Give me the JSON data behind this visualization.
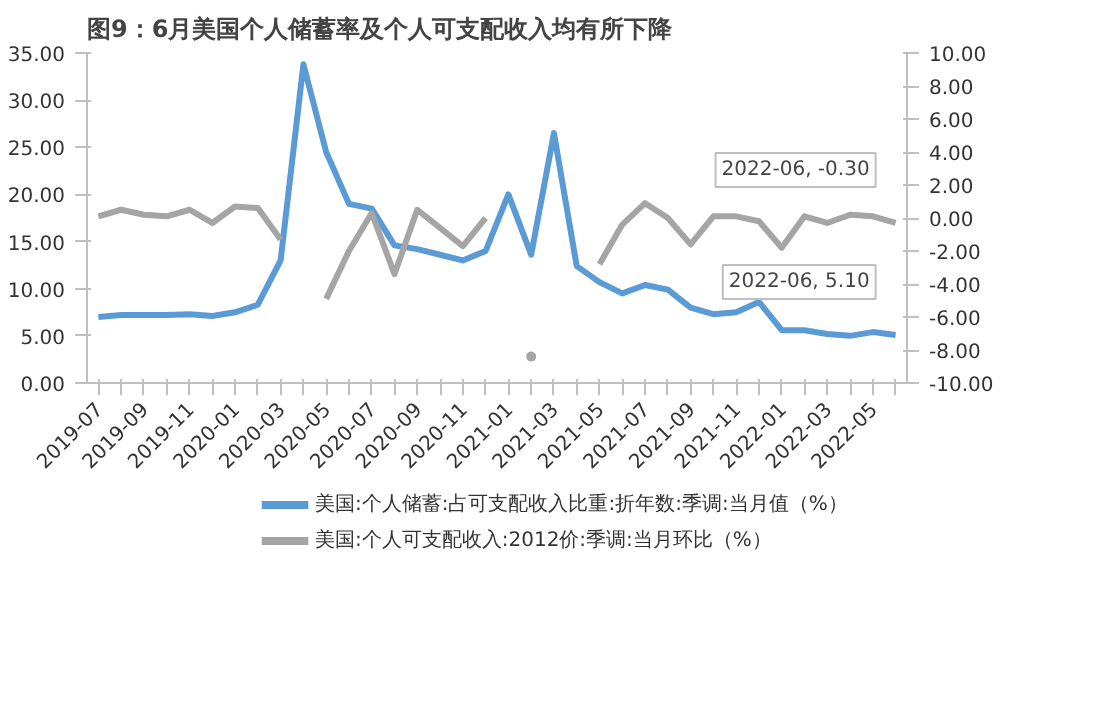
{
  "chart_data": {
    "type": "line",
    "title": "图9：6月美国个人储蓄率及个人可支配收入均有所下降",
    "categories": [
      "2019-07",
      null,
      "2019-09",
      null,
      "2019-11",
      null,
      "2020-01",
      null,
      "2020-03",
      null,
      "2020-05",
      null,
      "2020-07",
      null,
      "2020-09",
      null,
      "2020-11",
      null,
      "2021-01",
      null,
      "2021-03",
      null,
      "2021-05",
      null,
      "2021-07",
      null,
      "2021-09",
      null,
      "2021-11",
      null,
      "2022-01",
      null,
      "2022-03",
      null,
      "2022-05",
      null
    ],
    "series": [
      {
        "name": "美国:个人储蓄:占可支配收入比重:折年数:季调:当月值（%）",
        "color": "#5b9bd5",
        "values": [
          7.0,
          7.2,
          7.2,
          7.2,
          7.3,
          7.1,
          7.5,
          8.3,
          13.0,
          33.8,
          24.5,
          19.0,
          18.5,
          14.6,
          14.2,
          13.6,
          13.0,
          14.0,
          20.0,
          13.6,
          26.5,
          12.4,
          10.7,
          9.5,
          10.4,
          9.9,
          8.0,
          7.3,
          7.5,
          8.6,
          5.6,
          5.6,
          5.2,
          5.0,
          5.4,
          5.1
        ]
      },
      {
        "name": "美国:个人可支配收入:2012价:季调:当月环比（%）",
        "color": "#a5a5a5",
        "axis": "y2",
        "values": [
          0.1,
          0.5,
          0.2,
          0.1,
          0.5,
          -0.3,
          0.7,
          0.6,
          -1.3,
          null,
          -4.9,
          -2.0,
          0.3,
          -3.4,
          0.5,
          -0.6,
          -1.7,
          0.0,
          null,
          -8.4,
          null,
          null,
          -2.8,
          -0.4,
          0.9,
          0.0,
          -1.6,
          0.1,
          0.1,
          -0.2,
          -1.8,
          0.1,
          -0.3,
          0.2,
          0.1,
          -0.3
        ]
      }
    ],
    "annotations": [
      "2022-06, 5.10",
      "2022-06, -0.30"
    ],
    "ylim": [
      0,
      35
    ],
    "yticks": [
      {
        "value": 0,
        "label": "0.00"
      },
      {
        "value": 5,
        "label": "5.00"
      },
      {
        "value": 10,
        "label": "10.00"
      },
      {
        "value": 15,
        "label": "15.00"
      },
      {
        "value": 20,
        "label": "20.00"
      },
      {
        "value": 25,
        "label": "25.00"
      },
      {
        "value": 30,
        "label": "30.00"
      },
      {
        "value": 35,
        "label": "35.00"
      }
    ],
    "y2lim": [
      -10,
      10
    ],
    "y2ticks": [
      {
        "value": -10,
        "label": "-10.00"
      },
      {
        "value": -8,
        "label": "-8.00"
      },
      {
        "value": -6,
        "label": "-6.00"
      },
      {
        "value": -4,
        "label": "-4.00"
      },
      {
        "value": -2,
        "label": "-2.00"
      },
      {
        "value": 0,
        "label": "0.00"
      },
      {
        "value": 2,
        "label": "2.00"
      },
      {
        "value": 4,
        "label": "4.00"
      },
      {
        "value": 6,
        "label": "6.00"
      },
      {
        "value": 8,
        "label": "8.00"
      },
      {
        "value": 10,
        "label": "10.00"
      }
    ],
    "grid": false,
    "legend": "bottom",
    "marker": "none",
    "line_style": "solid"
  }
}
